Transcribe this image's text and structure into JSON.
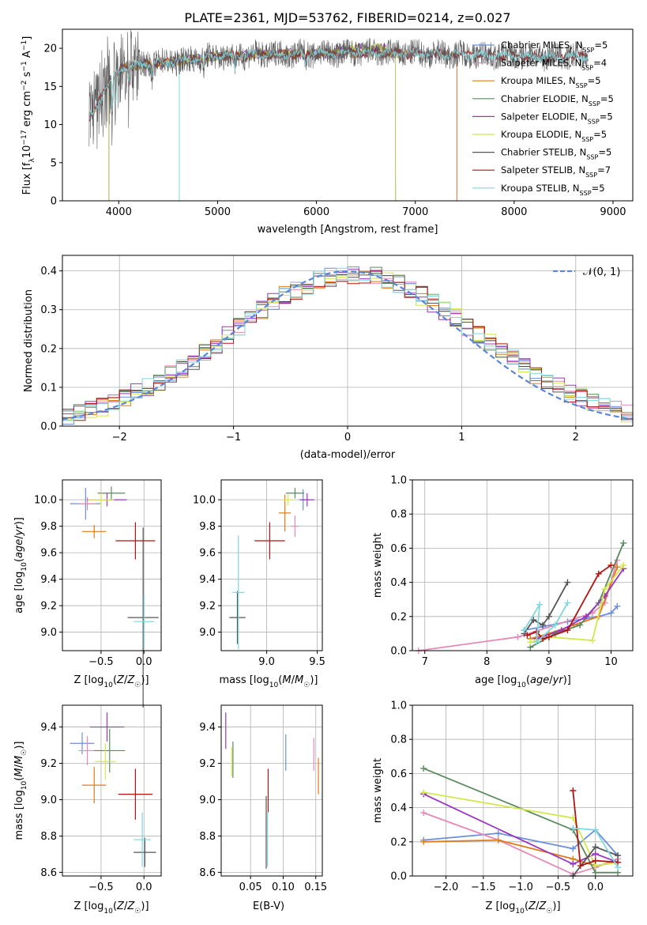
{
  "figure_title": "PLATE=2361, MJD=53762, FIBERID=0214, z=0.027",
  "colors": {
    "Chabrier MILES": "#6a8fdc",
    "Salpeter MILES": "#e58ab8",
    "Kroupa MILES": "#e07b18",
    "Chabrier ELODIE": "#5a8a5e",
    "Salpeter ELODIE": "#9b34c0",
    "Kroupa ELODIE": "#d2e84a",
    "Chabrier STELIB": "#555555",
    "Salpeter STELIB": "#b01414",
    "Kroupa STELIB": "#7fd7dd",
    "gaussian": "#5b86d8"
  },
  "chart_data": [
    {
      "id": "spectrum",
      "type": "line",
      "title": "PLATE=2361, MJD=53762, FIBERID=0214, z=0.027",
      "xlabel": "wavelength [Angstrom, rest frame]",
      "ylabel": "Flux [f_λ 10^-17 erg cm^-2 s^-1 A^-1]",
      "xlim": [
        3430,
        9200
      ],
      "ylim": [
        0,
        22.5
      ],
      "xticks": [
        4000,
        5000,
        6000,
        7000,
        8000,
        9000
      ],
      "yticks": [
        0,
        5,
        10,
        15,
        20
      ],
      "grid": false,
      "legend_position": "top-right",
      "legend": [
        "Chabrier MILES, N_SSP=5",
        "Salpeter MILES, N_SSP=4",
        "Kroupa MILES, N_SSP=5",
        "Chabrier ELODIE, N_SSP=5",
        "Salpeter ELODIE, N_SSP=5",
        "Kroupa ELODIE, N_SSP=5",
        "Chabrier STELIB, N_SSP=5",
        "Salpeter STELIB, N_SSP=7",
        "Kroupa STELIB, N_SSP=5"
      ],
      "continuum": [
        [
          3700,
          11.0
        ],
        [
          3750,
          11.5
        ],
        [
          3850,
          14.5
        ],
        [
          3950,
          16.5
        ],
        [
          4050,
          17.5
        ],
        [
          4300,
          18.0
        ],
        [
          4600,
          18.3
        ],
        [
          5000,
          19.0
        ],
        [
          5500,
          19.2
        ],
        [
          6000,
          19.3
        ],
        [
          6500,
          19.4
        ],
        [
          7000,
          19.3
        ],
        [
          7500,
          19.2
        ],
        [
          8000,
          19.0
        ],
        [
          8500,
          18.9
        ],
        [
          8750,
          18.9
        ]
      ],
      "range_ends": {
        "MILES": [
          3700,
          7420
        ],
        "ELODIE": [
          3900,
          6800
        ],
        "STELIB": [
          3700,
          8750
        ]
      }
    },
    {
      "id": "residuals",
      "type": "histogram",
      "xlabel": "(data-model)/error",
      "ylabel": "Normed distribution",
      "xlim": [
        -2.5,
        2.5
      ],
      "ylim": [
        0,
        0.44
      ],
      "xticks": [
        -2,
        -1,
        0,
        1,
        2
      ],
      "yticks": [
        0.0,
        0.1,
        0.2,
        0.3,
        0.4
      ],
      "grid": true,
      "legend_position": "top-right",
      "legend": [
        "𝒩(0, 1)"
      ],
      "bin_width": 0.1
    },
    {
      "id": "age_vs_Z",
      "type": "errorbar",
      "xlabel": "Z [log10(Z/Z☉)]",
      "ylabel": "age [log10(age/yr)]",
      "xlim": [
        -0.95,
        0.2
      ],
      "ylim": [
        8.86,
        10.15
      ],
      "xticks": [
        -0.5,
        0.0
      ],
      "yticks": [
        9.0,
        9.2,
        9.4,
        9.6,
        9.8,
        10.0
      ],
      "grid": true,
      "points": [
        {
          "model": "Chabrier MILES",
          "x": -0.68,
          "xerr": 0.18,
          "y": 9.97,
          "yerr": 0.12
        },
        {
          "model": "Salpeter MILES",
          "x": -0.66,
          "xerr": 0.1,
          "y": 9.97,
          "yerr": 0.05
        },
        {
          "model": "Kroupa MILES",
          "x": -0.58,
          "xerr": 0.14,
          "y": 9.76,
          "yerr": 0.05
        },
        {
          "model": "Chabrier ELODIE",
          "x": -0.38,
          "xerr": 0.16,
          "y": 10.05,
          "yerr": 0.05
        },
        {
          "model": "Salpeter ELODIE",
          "x": -0.43,
          "xerr": 0.23,
          "y": 10.0,
          "yerr": 0.05
        },
        {
          "model": "Kroupa ELODIE",
          "x": -0.5,
          "xerr": 0.15,
          "y": 10.0,
          "yerr": 0.05
        },
        {
          "model": "Chabrier STELIB",
          "x": -0.01,
          "xerr": 0.18,
          "y": 9.11,
          "yerr": 0.68
        },
        {
          "model": "Salpeter STELIB",
          "x": -0.1,
          "xerr": 0.23,
          "y": 9.69,
          "yerr": 0.14
        },
        {
          "model": "Kroupa STELIB",
          "x": 0.0,
          "xerr": 0.12,
          "y": 9.08,
          "yerr": 0.2
        }
      ]
    },
    {
      "id": "age_vs_mass",
      "type": "errorbar",
      "xlabel": "mass [log10(M/M☉)]",
      "ylabel": "",
      "xlim": [
        8.55,
        9.55
      ],
      "ylim": [
        8.86,
        10.15
      ],
      "xticks": [
        9.0,
        9.5
      ],
      "yticks": [
        9.0,
        9.2,
        9.4,
        9.6,
        9.8,
        10.0
      ],
      "grid": true,
      "points": [
        {
          "model": "Chabrier MILES",
          "x": 9.36,
          "xerr": 0.04,
          "y": 10.0,
          "yerr": 0.08
        },
        {
          "model": "Salpeter MILES",
          "x": 9.28,
          "xerr": 0.04,
          "y": 9.8,
          "yerr": 0.08
        },
        {
          "model": "Kroupa MILES",
          "x": 9.18,
          "xerr": 0.06,
          "y": 9.9,
          "yerr": 0.14
        },
        {
          "model": "Chabrier ELODIE",
          "x": 9.28,
          "xerr": 0.09,
          "y": 10.05,
          "yerr": 0.04
        },
        {
          "model": "Salpeter ELODIE",
          "x": 9.4,
          "xerr": 0.07,
          "y": 10.0,
          "yerr": 0.05
        },
        {
          "model": "Kroupa ELODIE",
          "x": 9.21,
          "xerr": 0.05,
          "y": 10.0,
          "yerr": 0.04
        },
        {
          "model": "Chabrier STELIB",
          "x": 8.71,
          "xerr": 0.08,
          "y": 9.11,
          "yerr": 0.2
        },
        {
          "model": "Salpeter STELIB",
          "x": 9.03,
          "xerr": 0.15,
          "y": 9.69,
          "yerr": 0.14
        },
        {
          "model": "Kroupa STELIB",
          "x": 8.72,
          "xerr": 0.06,
          "y": 9.3,
          "yerr": 0.43
        }
      ]
    },
    {
      "id": "massweight_vs_age",
      "type": "line",
      "xlabel": "age [log10(age/yr)]",
      "ylabel": "mass weight",
      "xlim": [
        6.8,
        10.35
      ],
      "ylim": [
        0,
        1.0
      ],
      "xticks": [
        7,
        8,
        9,
        10
      ],
      "yticks": [
        0.0,
        0.2,
        0.4,
        0.6,
        0.8,
        1.0
      ],
      "grid": true,
      "series": [
        {
          "model": "Chabrier MILES",
          "x": [
            8.6,
            8.9,
            9.3,
            9.8,
            10.0,
            10.1
          ],
          "y": [
            0.12,
            0.14,
            0.17,
            0.2,
            0.22,
            0.26
          ]
        },
        {
          "model": "Salpeter MILES",
          "x": [
            6.9,
            8.5,
            9.7,
            9.9,
            10.1
          ],
          "y": [
            0.0,
            0.08,
            0.22,
            0.28,
            0.53
          ]
        },
        {
          "model": "Kroupa MILES",
          "x": [
            8.7,
            9.0,
            9.4,
            9.8,
            10.1
          ],
          "y": [
            0.07,
            0.1,
            0.15,
            0.2,
            0.49
          ]
        },
        {
          "model": "Chabrier ELODIE",
          "x": [
            8.7,
            9.1,
            9.5,
            9.8,
            10.2
          ],
          "y": [
            0.02,
            0.1,
            0.15,
            0.28,
            0.63
          ]
        },
        {
          "model": "Salpeter ELODIE",
          "x": [
            8.8,
            9.2,
            9.6,
            9.9,
            10.2
          ],
          "y": [
            0.07,
            0.12,
            0.2,
            0.32,
            0.48
          ]
        },
        {
          "model": "Kroupa ELODIE",
          "x": [
            8.7,
            9.0,
            9.7,
            9.9,
            10.2
          ],
          "y": [
            0.05,
            0.08,
            0.06,
            0.36,
            0.5
          ]
        },
        {
          "model": "Chabrier STELIB",
          "x": [
            8.6,
            8.75,
            8.9,
            9.0,
            9.3
          ],
          "y": [
            0.1,
            0.18,
            0.15,
            0.2,
            0.4
          ]
        },
        {
          "model": "Salpeter STELIB",
          "x": [
            8.65,
            8.8,
            8.9,
            9.0,
            9.3,
            9.8,
            10.0
          ],
          "y": [
            0.09,
            0.11,
            0.07,
            0.08,
            0.12,
            0.45,
            0.5
          ]
        },
        {
          "model": "Kroupa STELIB",
          "x": [
            8.6,
            8.85,
            8.8,
            9.1,
            9.3
          ],
          "y": [
            0.12,
            0.27,
            0.05,
            0.15,
            0.28
          ]
        }
      ]
    },
    {
      "id": "mass_vs_Z",
      "type": "errorbar",
      "xlabel": "Z [log10(Z/Z☉)]",
      "ylabel": "mass [log10(M/M☉)]",
      "xlim": [
        -0.95,
        0.2
      ],
      "ylim": [
        8.58,
        9.52
      ],
      "xticks": [
        -0.5,
        0.0
      ],
      "yticks": [
        8.6,
        8.8,
        9.0,
        9.2,
        9.4
      ],
      "grid": true,
      "points": [
        {
          "model": "Chabrier MILES",
          "x": -0.72,
          "xerr": 0.14,
          "y": 9.31,
          "yerr": 0.06
        },
        {
          "model": "Salpeter MILES",
          "x": -0.66,
          "xerr": 0.1,
          "y": 9.27,
          "yerr": 0.08
        },
        {
          "model": "Kroupa MILES",
          "x": -0.58,
          "xerr": 0.14,
          "y": 9.08,
          "yerr": 0.1
        },
        {
          "model": "Chabrier ELODIE",
          "x": -0.4,
          "xerr": 0.18,
          "y": 9.27,
          "yerr": 0.12
        },
        {
          "model": "Salpeter ELODIE",
          "x": -0.43,
          "xerr": 0.2,
          "y": 9.4,
          "yerr": 0.08
        },
        {
          "model": "Kroupa ELODIE",
          "x": -0.45,
          "xerr": 0.12,
          "y": 9.21,
          "yerr": 0.1
        },
        {
          "model": "Chabrier STELIB",
          "x": 0.01,
          "xerr": 0.13,
          "y": 8.71,
          "yerr": 0.08
        },
        {
          "model": "Salpeter STELIB",
          "x": -0.1,
          "xerr": 0.2,
          "y": 9.03,
          "yerr": 0.14
        },
        {
          "model": "Kroupa STELIB",
          "x": -0.02,
          "xerr": 0.1,
          "y": 8.78,
          "yerr": 0.15
        }
      ]
    },
    {
      "id": "mass_vs_EBV",
      "type": "errorbar",
      "xlabel": "E(B-V)",
      "ylabel": "",
      "xlim": [
        0.005,
        0.16
      ],
      "ylim": [
        8.58,
        9.52
      ],
      "xticks": [
        0.05,
        0.1,
        0.15
      ],
      "yticks": [
        8.6,
        8.8,
        9.0,
        9.2,
        9.4
      ],
      "grid": true,
      "points": [
        {
          "model": "Chabrier MILES",
          "x": 0.104,
          "xerr": 0.0,
          "y": 9.26,
          "yerr": 0.1
        },
        {
          "model": "Salpeter MILES",
          "x": 0.147,
          "xerr": 0.0,
          "y": 9.25,
          "yerr": 0.09
        },
        {
          "model": "Kroupa MILES",
          "x": 0.154,
          "xerr": 0.0,
          "y": 9.13,
          "yerr": 0.1
        },
        {
          "model": "Chabrier ELODIE",
          "x": 0.023,
          "xerr": 0.0,
          "y": 9.22,
          "yerr": 0.1
        },
        {
          "model": "Salpeter ELODIE",
          "x": 0.012,
          "xerr": 0.0,
          "y": 9.38,
          "yerr": 0.1
        },
        {
          "model": "Kroupa ELODIE",
          "x": 0.021,
          "xerr": 0.0,
          "y": 9.21,
          "yerr": 0.08
        },
        {
          "model": "Chabrier STELIB",
          "x": 0.074,
          "xerr": 0.0,
          "y": 8.82,
          "yerr": 0.2
        },
        {
          "model": "Salpeter STELIB",
          "x": 0.077,
          "xerr": 0.0,
          "y": 9.05,
          "yerr": 0.12
        },
        {
          "model": "Kroupa STELIB",
          "x": 0.076,
          "xerr": 0.0,
          "y": 8.78,
          "yerr": 0.15
        }
      ]
    },
    {
      "id": "massweight_vs_Z",
      "type": "line",
      "xlabel": "Z [log10(Z/Z☉)]",
      "ylabel": "mass weight",
      "xlim": [
        -2.45,
        0.5
      ],
      "ylim": [
        0,
        1.0
      ],
      "xticks": [
        -2.0,
        -1.5,
        -1.0,
        -0.5,
        0.0
      ],
      "yticks": [
        0.0,
        0.2,
        0.4,
        0.6,
        0.8,
        1.0
      ],
      "grid": true,
      "series": [
        {
          "model": "Chabrier MILES",
          "x": [
            -2.3,
            -1.3,
            -0.3,
            0.0,
            0.3
          ],
          "y": [
            0.21,
            0.25,
            0.16,
            0.27,
            0.12
          ]
        },
        {
          "model": "Salpeter MILES",
          "x": [
            -2.3,
            -1.3,
            -0.3,
            0.0,
            0.3
          ],
          "y": [
            0.37,
            0.21,
            0.01,
            0.05,
            0.1
          ]
        },
        {
          "model": "Kroupa MILES",
          "x": [
            -2.3,
            -1.3,
            -0.3,
            0.0,
            0.3
          ],
          "y": [
            0.2,
            0.21,
            0.1,
            0.06,
            0.08
          ]
        },
        {
          "model": "Chabrier ELODIE",
          "x": [
            -2.3,
            -0.3,
            0.0,
            0.3
          ],
          "y": [
            0.63,
            0.27,
            0.02,
            0.02
          ]
        },
        {
          "model": "Salpeter ELODIE",
          "x": [
            -2.3,
            -0.3,
            0.0,
            0.3
          ],
          "y": [
            0.48,
            0.07,
            0.13,
            0.08
          ]
        },
        {
          "model": "Kroupa ELODIE",
          "x": [
            -2.3,
            -0.3,
            0.0,
            0.3
          ],
          "y": [
            0.49,
            0.34,
            0.06,
            0.08
          ]
        },
        {
          "model": "Chabrier STELIB",
          "x": [
            -0.3,
            0.0,
            0.3
          ],
          "y": [
            0.0,
            0.17,
            0.12
          ]
        },
        {
          "model": "Salpeter STELIB",
          "x": [
            -0.3,
            -0.2,
            0.0,
            0.3
          ],
          "y": [
            0.5,
            0.06,
            0.09,
            0.08
          ]
        },
        {
          "model": "Kroupa STELIB",
          "x": [
            -0.3,
            0.0,
            0.3
          ],
          "y": [
            0.28,
            0.27,
            0.05
          ]
        }
      ]
    }
  ]
}
